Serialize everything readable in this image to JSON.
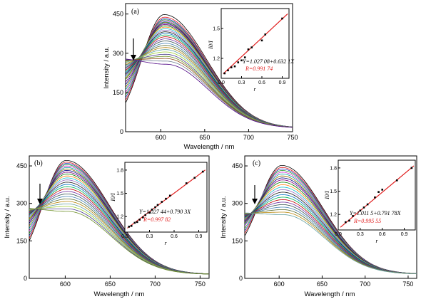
{
  "chart_data": [
    {
      "type": "line",
      "panel_label": "(a)",
      "xlabel": "Wavelength / nm",
      "ylabel": "Intensity / a.u.",
      "xlim": [
        560,
        750
      ],
      "ylim": [
        0,
        490
      ],
      "xticks": [
        600,
        650,
        700,
        750
      ],
      "yticks": [
        0,
        150,
        300,
        450
      ],
      "peak_x": 604,
      "curve_peaks": [
        448,
        438,
        432,
        428,
        424,
        420,
        418,
        414,
        410,
        405,
        400,
        394,
        388,
        382,
        376,
        370,
        363,
        355,
        347,
        338,
        330,
        322,
        314,
        305,
        296,
        288,
        280,
        270,
        258
      ],
      "start_values": [
        110,
        120,
        130,
        140,
        150,
        160,
        170,
        180,
        190,
        200,
        205,
        210,
        215,
        220,
        225,
        230,
        235,
        240,
        245,
        250,
        255,
        260,
        265,
        268,
        270,
        272,
        274,
        276,
        278
      ],
      "end_value": 14,
      "inset": {
        "type": "scatter",
        "xlabel": "r",
        "ylabel": "I0/I",
        "xlim": [
          0,
          1.0
        ],
        "ylim": [
          1.0,
          1.7
        ],
        "xticks": [
          0.0,
          0.3,
          0.6,
          0.9
        ],
        "yticks": [
          1.2,
          1.5
        ],
        "x": [
          0.05,
          0.1,
          0.15,
          0.2,
          0.25,
          0.3,
          0.35,
          0.4,
          0.45,
          0.6,
          0.65,
          0.9
        ],
        "y": [
          1.05,
          1.08,
          1.11,
          1.12,
          1.16,
          1.18,
          1.21,
          1.29,
          1.31,
          1.38,
          1.44,
          1.6
        ],
        "fit_slope": 0.6321,
        "fit_intercept": 1.02708,
        "equation": "Y=1.027 08+0.632 1X",
        "r_text": "R=0.991 74"
      }
    },
    {
      "type": "line",
      "panel_label": "(b)",
      "xlabel": "Wavelength / nm",
      "ylabel": "Intensity / a.u.",
      "xlim": [
        560,
        760
      ],
      "ylim": [
        0,
        490
      ],
      "xticks": [
        600,
        650,
        700,
        750
      ],
      "yticks": [
        0,
        150,
        300,
        450
      ],
      "peak_x": 601,
      "curve_peaks": [
        472,
        465,
        460,
        455,
        450,
        444,
        438,
        432,
        425,
        418,
        410,
        402,
        394,
        385,
        376,
        367,
        358,
        348,
        338,
        328,
        318,
        308,
        298,
        288,
        278,
        268
      ],
      "start_values": [
        150,
        160,
        170,
        180,
        190,
        200,
        210,
        220,
        228,
        235,
        240,
        245,
        250,
        255,
        258,
        260,
        262,
        264,
        266,
        268,
        270,
        272,
        274,
        276,
        278,
        280
      ],
      "end_value": 16,
      "inset": {
        "type": "scatter",
        "xlabel": "r",
        "ylabel": "I0/I",
        "xlim": [
          0,
          1.0
        ],
        "ylim": [
          1.0,
          1.9
        ],
        "xticks": [
          0.0,
          0.3,
          0.6,
          0.9
        ],
        "yticks": [
          1.2,
          1.5,
          1.8
        ],
        "x": [
          0.05,
          0.08,
          0.12,
          0.15,
          0.18,
          0.22,
          0.25,
          0.3,
          0.33,
          0.37,
          0.4,
          0.45,
          0.5,
          0.55,
          0.75,
          0.85,
          0.95
        ],
        "y": [
          1.07,
          1.08,
          1.12,
          1.13,
          1.16,
          1.19,
          1.22,
          1.25,
          1.29,
          1.32,
          1.35,
          1.39,
          1.43,
          1.47,
          1.63,
          1.7,
          1.78
        ],
        "fit_slope": 0.7903,
        "fit_intercept": 1.02744,
        "equation": "Y=1.027 44+0.790 3X",
        "r_text": "R=0.997 82"
      }
    },
    {
      "type": "line",
      "panel_label": "(c)",
      "xlabel": "Wavelength / nm",
      "ylabel": "Intensity / a.u.",
      "xlim": [
        560,
        760
      ],
      "ylim": [
        0,
        490
      ],
      "xticks": [
        600,
        650,
        700,
        750
      ],
      "yticks": [
        0,
        150,
        300,
        450
      ],
      "peak_x": 603,
      "curve_peaks": [
        452,
        444,
        438,
        432,
        425,
        418,
        410,
        402,
        394,
        385,
        375,
        365,
        355,
        345,
        335,
        325,
        315,
        305,
        295,
        285,
        275,
        265,
        255
      ],
      "start_values": [
        170,
        180,
        190,
        200,
        210,
        215,
        220,
        225,
        230,
        235,
        238,
        240,
        242,
        244,
        246,
        248,
        250,
        252,
        254,
        256,
        258,
        260,
        262
      ],
      "end_value": 17,
      "inset": {
        "type": "scatter",
        "xlabel": "r",
        "ylabel": "I0/I",
        "xlim": [
          0,
          1.05
        ],
        "ylim": [
          1.0,
          1.9
        ],
        "xticks": [
          0.0,
          0.3,
          0.6,
          0.9
        ],
        "yticks": [
          1.2,
          1.5,
          1.8
        ],
        "x": [
          0.1,
          0.15,
          0.2,
          0.3,
          0.35,
          0.4,
          0.5,
          0.55,
          0.6,
          0.8,
          1.0
        ],
        "y": [
          1.1,
          1.12,
          1.18,
          1.25,
          1.29,
          1.33,
          1.42,
          1.49,
          1.52,
          1.64,
          1.8
        ],
        "fit_slope": 0.79178,
        "fit_intercept": 1.0115,
        "equation": "Y=1.011 5+0.791 78X",
        "r_text": "R=0.995 55"
      }
    }
  ]
}
